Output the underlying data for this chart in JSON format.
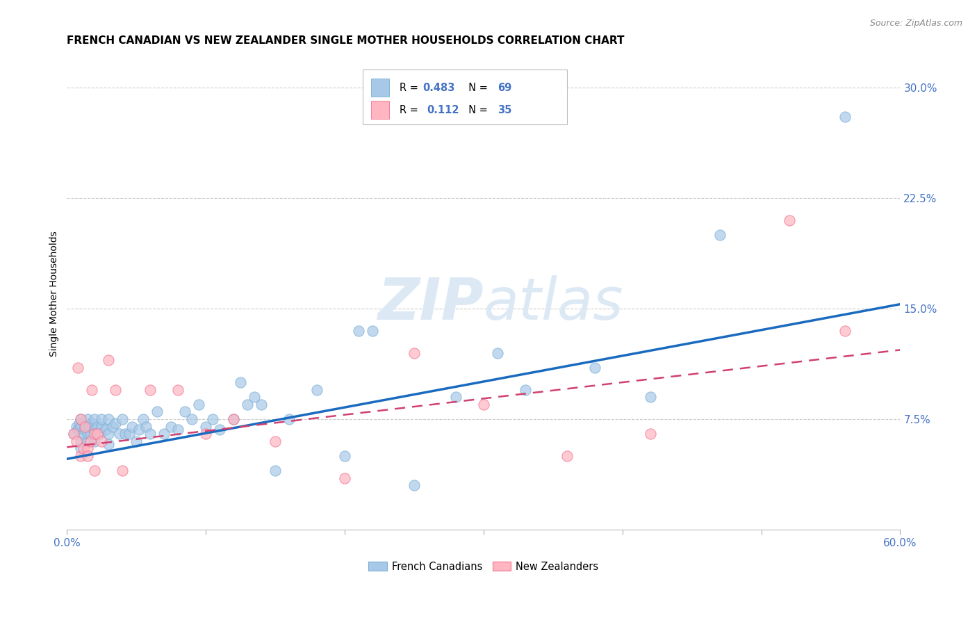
{
  "title": "FRENCH CANADIAN VS NEW ZEALANDER SINGLE MOTHER HOUSEHOLDS CORRELATION CHART",
  "source": "Source: ZipAtlas.com",
  "ylabel": "Single Mother Households",
  "ytick_labels": [
    "7.5%",
    "15.0%",
    "22.5%",
    "30.0%"
  ],
  "ytick_values": [
    0.075,
    0.15,
    0.225,
    0.3
  ],
  "xlim": [
    0.0,
    0.6
  ],
  "ylim": [
    0.0,
    0.32
  ],
  "watermark": "ZIPatlas",
  "french_canadians": {
    "color": "#a8c8e8",
    "edge_color": "#7aafd4",
    "line_color": "#1a6bbf",
    "x": [
      0.005,
      0.007,
      0.008,
      0.009,
      0.01,
      0.01,
      0.01,
      0.01,
      0.012,
      0.013,
      0.014,
      0.015,
      0.015,
      0.015,
      0.016,
      0.017,
      0.018,
      0.02,
      0.02,
      0.02,
      0.022,
      0.024,
      0.025,
      0.025,
      0.028,
      0.03,
      0.03,
      0.03,
      0.033,
      0.035,
      0.038,
      0.04,
      0.042,
      0.045,
      0.047,
      0.05,
      0.052,
      0.055,
      0.057,
      0.06,
      0.065,
      0.07,
      0.075,
      0.08,
      0.085,
      0.09,
      0.095,
      0.1,
      0.105,
      0.11,
      0.12,
      0.125,
      0.13,
      0.135,
      0.14,
      0.15,
      0.16,
      0.18,
      0.2,
      0.21,
      0.22,
      0.25,
      0.28,
      0.31,
      0.33,
      0.38,
      0.42,
      0.47,
      0.56
    ],
    "y": [
      0.065,
      0.07,
      0.068,
      0.072,
      0.055,
      0.06,
      0.07,
      0.075,
      0.065,
      0.068,
      0.07,
      0.06,
      0.065,
      0.075,
      0.07,
      0.065,
      0.072,
      0.06,
      0.068,
      0.075,
      0.07,
      0.065,
      0.07,
      0.075,
      0.068,
      0.058,
      0.065,
      0.075,
      0.07,
      0.072,
      0.065,
      0.075,
      0.065,
      0.065,
      0.07,
      0.06,
      0.068,
      0.075,
      0.07,
      0.065,
      0.08,
      0.065,
      0.07,
      0.068,
      0.08,
      0.075,
      0.085,
      0.07,
      0.075,
      0.068,
      0.075,
      0.1,
      0.085,
      0.09,
      0.085,
      0.04,
      0.075,
      0.095,
      0.05,
      0.135,
      0.135,
      0.03,
      0.09,
      0.12,
      0.095,
      0.11,
      0.09,
      0.2,
      0.28
    ],
    "trendline_x": [
      0.0,
      0.6
    ],
    "trendline_y": [
      0.048,
      0.153
    ]
  },
  "new_zealanders": {
    "color": "#ffb6c1",
    "edge_color": "#f07090",
    "line_color": "#d04070",
    "x": [
      0.005,
      0.007,
      0.008,
      0.01,
      0.01,
      0.012,
      0.013,
      0.015,
      0.015,
      0.017,
      0.018,
      0.02,
      0.02,
      0.022,
      0.025,
      0.03,
      0.035,
      0.04,
      0.06,
      0.08,
      0.1,
      0.12,
      0.15,
      0.2,
      0.25,
      0.3,
      0.36,
      0.42,
      0.52,
      0.56
    ],
    "y": [
      0.065,
      0.06,
      0.11,
      0.05,
      0.075,
      0.055,
      0.07,
      0.055,
      0.05,
      0.06,
      0.095,
      0.04,
      0.065,
      0.065,
      0.06,
      0.115,
      0.095,
      0.04,
      0.095,
      0.095,
      0.065,
      0.075,
      0.06,
      0.035,
      0.12,
      0.085,
      0.05,
      0.065,
      0.21,
      0.135
    ],
    "trendline_x": [
      0.0,
      0.6
    ],
    "trendline_y": [
      0.056,
      0.122
    ]
  },
  "background_color": "#ffffff",
  "grid_color": "#cccccc",
  "title_fontsize": 11,
  "axis_label_fontsize": 10,
  "tick_fontsize": 11,
  "tick_color": "#4472c4",
  "label_color": "#4472c4",
  "watermark_color": "#dce9f5",
  "watermark_fontsize": 60
}
